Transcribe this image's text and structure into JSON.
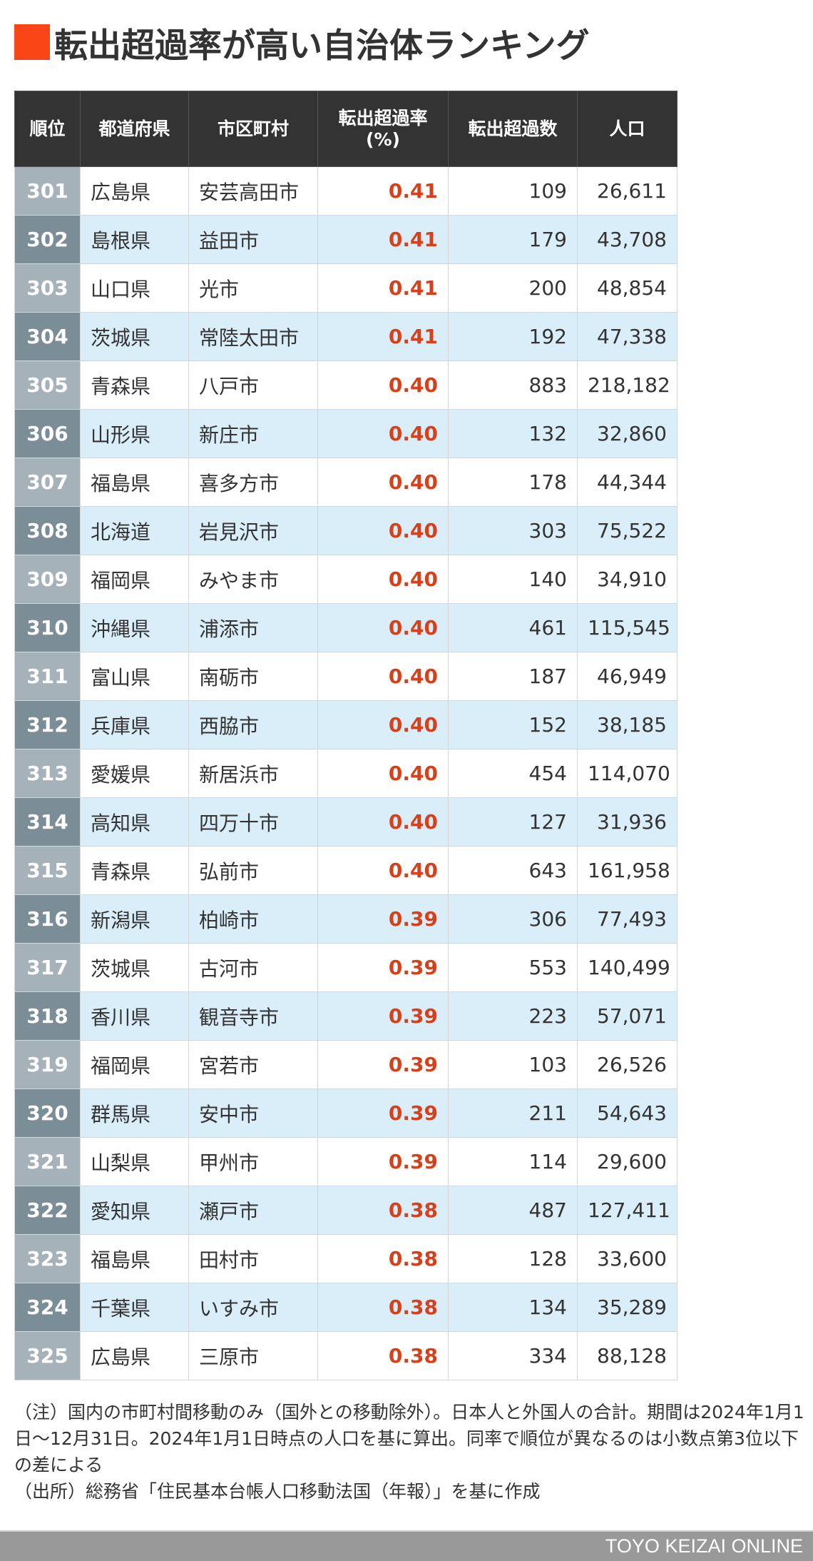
{
  "title": "転出超過率が高い自治体ランキング",
  "accent_color": "#fa4616",
  "table": {
    "headers": [
      "順位",
      "都道府県",
      "市区町村",
      "転出超過率\n(%)",
      "転出超過数",
      "人口"
    ],
    "rows": [
      [
        "301",
        "広島県",
        "安芸高田市",
        "0.41",
        "109",
        "26,611"
      ],
      [
        "302",
        "島根県",
        "益田市",
        "0.41",
        "179",
        "43,708"
      ],
      [
        "303",
        "山口県",
        "光市",
        "0.41",
        "200",
        "48,854"
      ],
      [
        "304",
        "茨城県",
        "常陸太田市",
        "0.41",
        "192",
        "47,338"
      ],
      [
        "305",
        "青森県",
        "八戸市",
        "0.40",
        "883",
        "218,182"
      ],
      [
        "306",
        "山形県",
        "新庄市",
        "0.40",
        "132",
        "32,860"
      ],
      [
        "307",
        "福島県",
        "喜多方市",
        "0.40",
        "178",
        "44,344"
      ],
      [
        "308",
        "北海道",
        "岩見沢市",
        "0.40",
        "303",
        "75,522"
      ],
      [
        "309",
        "福岡県",
        "みやま市",
        "0.40",
        "140",
        "34,910"
      ],
      [
        "310",
        "沖縄県",
        "浦添市",
        "0.40",
        "461",
        "115,545"
      ],
      [
        "311",
        "富山県",
        "南砺市",
        "0.40",
        "187",
        "46,949"
      ],
      [
        "312",
        "兵庫県",
        "西脇市",
        "0.40",
        "152",
        "38,185"
      ],
      [
        "313",
        "愛媛県",
        "新居浜市",
        "0.40",
        "454",
        "114,070"
      ],
      [
        "314",
        "高知県",
        "四万十市",
        "0.40",
        "127",
        "31,936"
      ],
      [
        "315",
        "青森県",
        "弘前市",
        "0.40",
        "643",
        "161,958"
      ],
      [
        "316",
        "新潟県",
        "柏崎市",
        "0.39",
        "306",
        "77,493"
      ],
      [
        "317",
        "茨城県",
        "古河市",
        "0.39",
        "553",
        "140,499"
      ],
      [
        "318",
        "香川県",
        "観音寺市",
        "0.39",
        "223",
        "57,071"
      ],
      [
        "319",
        "福岡県",
        "宮若市",
        "0.39",
        "103",
        "26,526"
      ],
      [
        "320",
        "群馬県",
        "安中市",
        "0.39",
        "211",
        "54,643"
      ],
      [
        "321",
        "山梨県",
        "甲州市",
        "0.39",
        "114",
        "29,600"
      ],
      [
        "322",
        "愛知県",
        "瀬戸市",
        "0.38",
        "487",
        "127,411"
      ],
      [
        "323",
        "福島県",
        "田村市",
        "0.38",
        "128",
        "33,600"
      ],
      [
        "324",
        "千葉県",
        "いすみ市",
        "0.38",
        "134",
        "35,289"
      ],
      [
        "325",
        "広島県",
        "三原市",
        "0.38",
        "334",
        "88,128"
      ]
    ]
  },
  "notes": [
    "（注）国内の市町村間移動のみ（国外との移動除外）。日本人と外国人の合計。期間は2024年1月1日～12月31日。2024年1月1日時点の人口を基に算出。同率で順位が異なるのは小数点第3位以下の差による",
    "（出所）総務省「住民基本台帳人口移動法国（年報）」を基に作成"
  ],
  "footer": "TOYO KEIZAI ONLINE"
}
